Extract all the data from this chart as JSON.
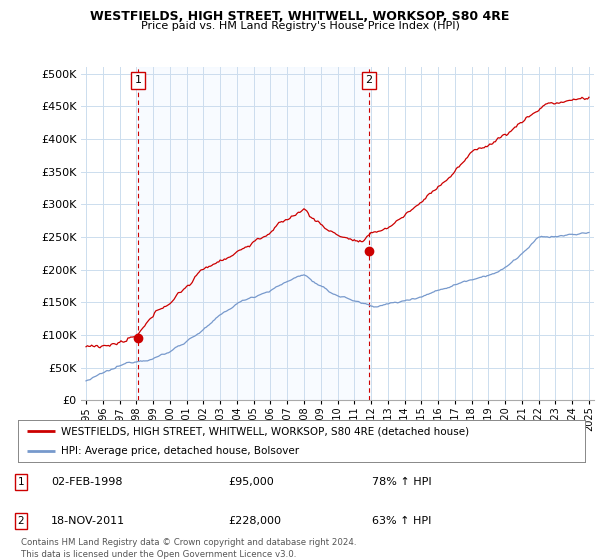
{
  "title1": "WESTFIELDS, HIGH STREET, WHITWELL, WORKSOP, S80 4RE",
  "title2": "Price paid vs. HM Land Registry's House Price Index (HPI)",
  "ylim": [
    0,
    500000
  ],
  "yticks": [
    0,
    50000,
    100000,
    150000,
    200000,
    250000,
    300000,
    350000,
    400000,
    450000,
    500000
  ],
  "ytick_labels": [
    "£0",
    "£50K",
    "£100K",
    "£150K",
    "£200K",
    "£250K",
    "£300K",
    "£350K",
    "£400K",
    "£450K",
    "£500K"
  ],
  "line1_color": "#cc0000",
  "line2_color": "#7799cc",
  "shade_color": "#ddeeff",
  "marker_color": "#cc0000",
  "point1_x": 1998.09,
  "point1_y": 95000,
  "point2_x": 2011.89,
  "point2_y": 228000,
  "legend1": "WESTFIELDS, HIGH STREET, WHITWELL, WORKSOP, S80 4RE (detached house)",
  "legend2": "HPI: Average price, detached house, Bolsover",
  "table_row1": [
    "1",
    "02-FEB-1998",
    "£95,000",
    "78% ↑ HPI"
  ],
  "table_row2": [
    "2",
    "18-NOV-2011",
    "£228,000",
    "63% ↑ HPI"
  ],
  "footnote": "Contains HM Land Registry data © Crown copyright and database right 2024.\nThis data is licensed under the Open Government Licence v3.0.",
  "bg_color": "#ffffff",
  "grid_color": "#ccddee",
  "vline_color": "#cc0000",
  "xlim_left": 1994.7,
  "xlim_right": 2025.3
}
